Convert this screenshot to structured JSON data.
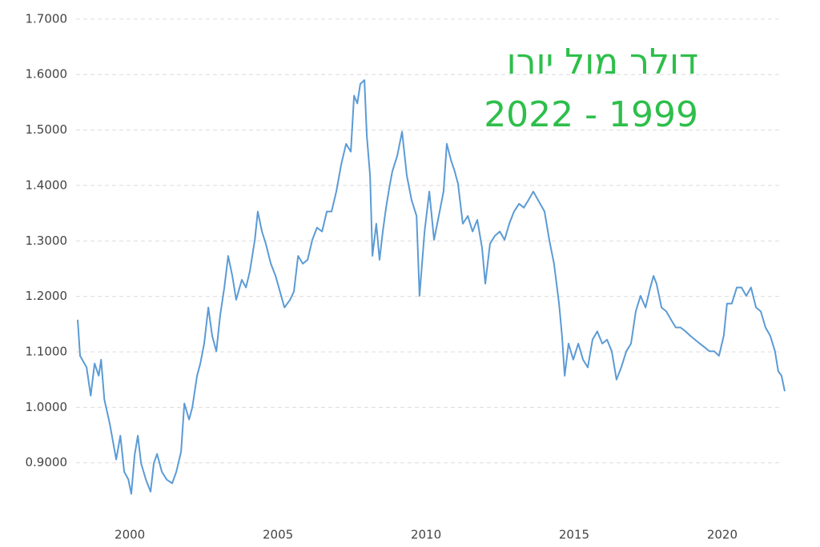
{
  "chart_data": {
    "type": "line",
    "title": "דולר מול יורו",
    "subtitle": "2022 - 1999",
    "title_color": "#2dbf4a",
    "color": "#5b9bd5",
    "grid": true,
    "xlim": [
      1998.05,
      2022.11
    ],
    "xticks": [
      2000,
      2005,
      2010,
      2015,
      2020
    ],
    "ylim": [
      0.79,
      1.72
    ],
    "yticks": [
      {
        "value": 0.9,
        "label": "0.9000"
      },
      {
        "value": 1.0,
        "label": "1.0000"
      },
      {
        "value": 1.1,
        "label": "1.1000"
      },
      {
        "value": 1.2,
        "label": "1.2000"
      },
      {
        "value": 1.3,
        "label": "1.3000"
      },
      {
        "value": 1.4,
        "label": "1.4000"
      },
      {
        "value": 1.5,
        "label": "1.5000"
      },
      {
        "value": 1.6,
        "label": "1.6000"
      },
      {
        "value": 1.7,
        "label": "1.7000"
      }
    ],
    "x": [
      1998.24,
      1998.32,
      1998.54,
      1998.68,
      1998.81,
      1998.95,
      1999.03,
      1999.14,
      1999.32,
      1999.54,
      1999.68,
      1999.81,
      1999.95,
      2000.05,
      2000.16,
      2000.27,
      2000.38,
      2000.54,
      2000.7,
      2000.81,
      2000.92,
      2001.08,
      2001.24,
      2001.43,
      2001.57,
      2001.73,
      2001.84,
      2002.0,
      2002.11,
      2002.27,
      2002.38,
      2002.51,
      2002.65,
      2002.78,
      2002.92,
      2003.05,
      2003.19,
      2003.32,
      2003.46,
      2003.59,
      2003.78,
      2003.92,
      2004.05,
      2004.22,
      2004.32,
      2004.46,
      2004.59,
      2004.76,
      2004.92,
      2005.03,
      2005.22,
      2005.41,
      2005.54,
      2005.68,
      2005.84,
      2006.0,
      2006.16,
      2006.32,
      2006.49,
      2006.65,
      2006.81,
      2006.97,
      2007.14,
      2007.3,
      2007.46,
      2007.57,
      2007.68,
      2007.78,
      2007.92,
      2008.0,
      2008.11,
      2008.19,
      2008.32,
      2008.43,
      2008.54,
      2008.65,
      2008.76,
      2008.86,
      2009.03,
      2009.19,
      2009.35,
      2009.51,
      2009.68,
      2009.78,
      2009.95,
      2010.11,
      2010.27,
      2010.43,
      2010.59,
      2010.7,
      2010.84,
      2010.97,
      2011.08,
      2011.24,
      2011.41,
      2011.57,
      2011.73,
      2011.89,
      2012.0,
      2012.16,
      2012.32,
      2012.49,
      2012.65,
      2012.81,
      2012.97,
      2013.14,
      2013.3,
      2013.46,
      2013.62,
      2013.78,
      2014.0,
      2014.16,
      2014.32,
      2014.49,
      2014.59,
      2014.68,
      2014.81,
      2014.97,
      2015.14,
      2015.3,
      2015.46,
      2015.62,
      2015.78,
      2015.95,
      2016.11,
      2016.27,
      2016.43,
      2016.59,
      2016.76,
      2016.92,
      2017.08,
      2017.24,
      2017.41,
      2017.57,
      2017.68,
      2017.78,
      2017.95,
      2018.11,
      2018.27,
      2018.43,
      2018.59,
      2018.76,
      2018.92,
      2019.08,
      2019.24,
      2019.41,
      2019.57,
      2019.73,
      2019.89,
      2020.05,
      2020.16,
      2020.32,
      2020.49,
      2020.65,
      2020.81,
      2020.97,
      2021.14,
      2021.3,
      2021.46,
      2021.62,
      2021.78,
      2021.89,
      2022.0,
      2022.11
    ],
    "values": [
      1.158,
      1.093,
      1.072,
      1.021,
      1.079,
      1.057,
      1.086,
      1.014,
      0.971,
      0.906,
      0.949,
      0.884,
      0.87,
      0.844,
      0.913,
      0.949,
      0.899,
      0.87,
      0.848,
      0.899,
      0.916,
      0.884,
      0.87,
      0.863,
      0.884,
      0.92,
      1.007,
      0.978,
      1.0,
      1.057,
      1.079,
      1.115,
      1.18,
      1.129,
      1.101,
      1.166,
      1.216,
      1.273,
      1.237,
      1.194,
      1.23,
      1.216,
      1.245,
      1.302,
      1.353,
      1.317,
      1.295,
      1.259,
      1.237,
      1.216,
      1.18,
      1.194,
      1.209,
      1.273,
      1.259,
      1.266,
      1.302,
      1.324,
      1.317,
      1.353,
      1.353,
      1.389,
      1.439,
      1.475,
      1.461,
      1.562,
      1.548,
      1.583,
      1.59,
      1.49,
      1.418,
      1.273,
      1.331,
      1.266,
      1.317,
      1.36,
      1.396,
      1.425,
      1.454,
      1.497,
      1.418,
      1.374,
      1.345,
      1.201,
      1.317,
      1.389,
      1.302,
      1.345,
      1.389,
      1.475,
      1.446,
      1.425,
      1.403,
      1.331,
      1.345,
      1.317,
      1.338,
      1.288,
      1.223,
      1.295,
      1.309,
      1.317,
      1.302,
      1.331,
      1.353,
      1.367,
      1.36,
      1.374,
      1.389,
      1.374,
      1.353,
      1.302,
      1.259,
      1.187,
      1.129,
      1.057,
      1.115,
      1.086,
      1.115,
      1.086,
      1.072,
      1.122,
      1.137,
      1.115,
      1.122,
      1.101,
      1.05,
      1.072,
      1.101,
      1.115,
      1.173,
      1.201,
      1.18,
      1.216,
      1.237,
      1.223,
      1.18,
      1.173,
      1.158,
      1.144,
      1.144,
      1.137,
      1.129,
      1.122,
      1.115,
      1.108,
      1.101,
      1.101,
      1.093,
      1.129,
      1.187,
      1.187,
      1.216,
      1.216,
      1.201,
      1.216,
      1.18,
      1.173,
      1.144,
      1.129,
      1.101,
      1.065,
      1.057,
      1.029
    ]
  }
}
